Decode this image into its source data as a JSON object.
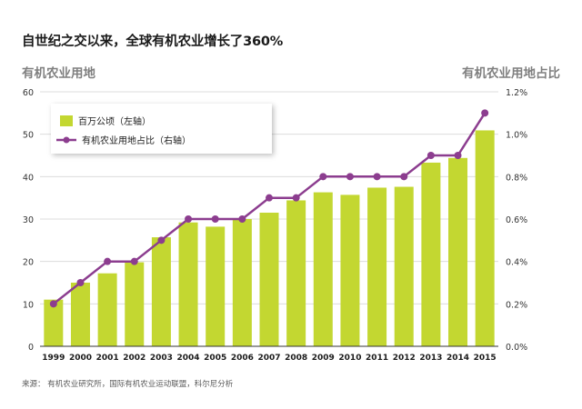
{
  "title": "自世纪之交以来，全球有机农业增长了360%",
  "source": "来源： 有机农业研究所，国际有机农业运动联盟，科尔尼分析",
  "colors": {
    "bar": "#c3d731",
    "line": "#8c3d8f",
    "axis": "#333333",
    "grid": "#dcdcdc"
  },
  "chart_data": {
    "type": "bar+line",
    "categories": [
      "1999",
      "2000",
      "2001",
      "2002",
      "2003",
      "2004",
      "2005",
      "2006",
      "2007",
      "2008",
      "2009",
      "2010",
      "2011",
      "2012",
      "2013",
      "2014",
      "2015"
    ],
    "series": [
      {
        "name": "百万公顷（左轴）",
        "type": "bar",
        "axis": "left",
        "values": [
          11,
          15,
          17.2,
          19.8,
          25.7,
          29.2,
          28.2,
          30,
          31.5,
          34.4,
          36.3,
          35.7,
          37.4,
          37.6,
          43.3,
          44.4,
          50.9
        ]
      },
      {
        "name": "有机农业用地占比（右轴）",
        "type": "line",
        "axis": "right",
        "values": [
          0.2,
          0.3,
          0.4,
          0.4,
          0.5,
          0.6,
          0.6,
          0.6,
          0.7,
          0.7,
          0.8,
          0.8,
          0.8,
          0.8,
          0.9,
          0.9,
          1.1
        ]
      }
    ],
    "y_left": {
      "label": "有机农业用地",
      "min": 0,
      "max": 60,
      "ticks": [
        "0",
        "10",
        "20",
        "30",
        "40",
        "50",
        "60"
      ]
    },
    "y_right": {
      "label": "有机农业用地占比",
      "min": 0,
      "max": 1.2,
      "ticks": [
        "0.0%",
        "0.2%",
        "0.4%",
        "0.6%",
        "0.8%",
        "1.0%",
        "1.2%"
      ]
    },
    "grid": true,
    "legend_position": "top-left"
  }
}
